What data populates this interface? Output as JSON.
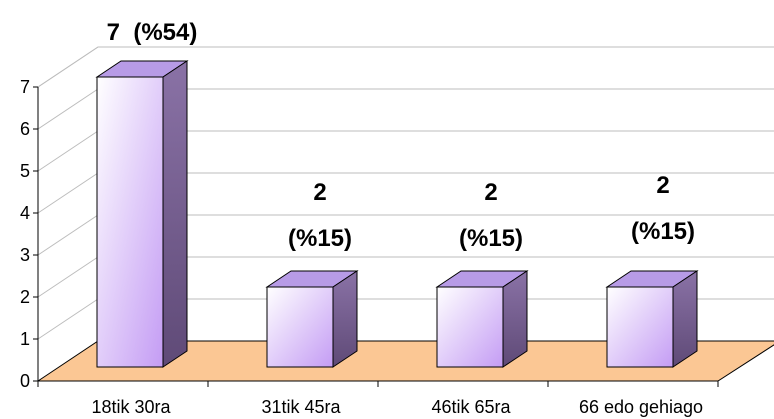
{
  "chart_data": {
    "type": "bar",
    "style": "3d-column",
    "categories": [
      "18tik 30ra",
      "31tik 45ra",
      "46tik 65ra",
      "66 edo gehiago"
    ],
    "values": [
      7,
      2,
      2,
      2
    ],
    "data_labels": [
      [
        "7",
        "(%54)"
      ],
      [
        "2",
        "(%15)"
      ],
      [
        "2",
        "(%15)"
      ],
      [
        "2",
        "(%15)"
      ]
    ],
    "y_ticks": [
      "0",
      "1",
      "2",
      "3",
      "4",
      "5",
      "6",
      "7"
    ],
    "ylim": [
      0,
      7
    ],
    "grid": true,
    "legend": "none",
    "colors": {
      "bar_front_top": "#ffffff",
      "bar_front_bottom": "#c49cf4",
      "bar_top": "#b79be6",
      "bar_side": "#6c5484",
      "floor": "#fbc794",
      "gridline": "#bdbdbd",
      "axis": "#000000"
    }
  }
}
